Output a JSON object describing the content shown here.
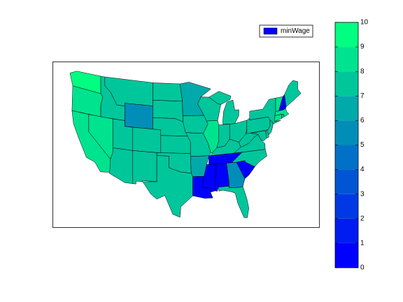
{
  "chart_data": {
    "type": "choropleth",
    "series": [
      {
        "name": "minWage",
        "color": "#0000ff",
        "values": [
          9.19,
          8.95,
          8,
          8.25,
          7.25,
          7.9,
          5.15,
          7.25,
          7.8,
          7.64,
          7.5,
          7.25,
          7.25,
          7.25,
          7.25,
          7.25,
          7.25,
          6.15,
          7.25,
          7.25,
          6.25,
          0,
          7.25,
          8.25,
          7.4,
          7.25,
          7.85,
          7.25,
          0,
          0,
          0,
          5.15,
          7.67,
          0,
          7.25,
          7.25,
          7.25,
          7.25,
          7.25,
          7.25,
          7.25,
          7.25,
          8.25,
          7.75,
          8,
          8.6,
          0,
          7.5
        ]
      }
    ],
    "colorbar": {
      "lim": [
        0,
        10
      ],
      "ticks": [
        0,
        1,
        2,
        3,
        4,
        5,
        6,
        7,
        8,
        9,
        10
      ],
      "colormap": [
        "#0000ff",
        "#00ff80"
      ]
    },
    "legend": "upper right"
  }
}
